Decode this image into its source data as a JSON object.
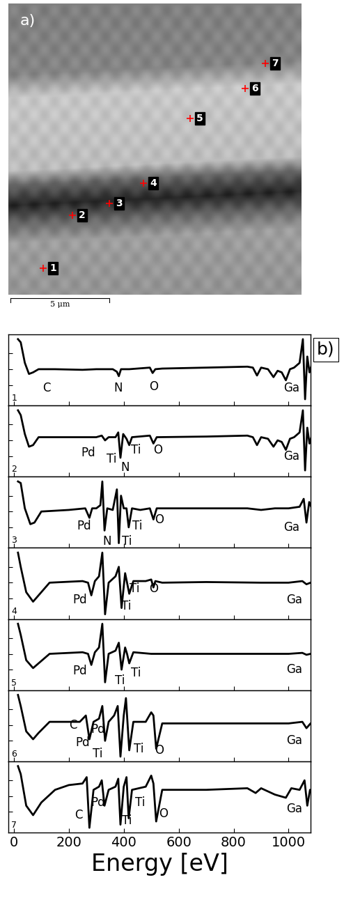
{
  "panel_a": {
    "label": "a)",
    "points": [
      "1",
      "2",
      "3",
      "4",
      "5",
      "6",
      "7"
    ],
    "scale_bar": "5 μm"
  },
  "panel_b_label": "b)",
  "chart_data": [
    {
      "type": "line",
      "label": "1",
      "color": "#000000",
      "tick_labels": false,
      "xlim": [
        -20,
        1080
      ],
      "ylim": [
        -1.15,
        1.1
      ],
      "xticks": [
        0,
        200,
        400,
        600,
        800,
        1000
      ],
      "yticks": [
        -0.5,
        0,
        0.5
      ],
      "x": [
        15,
        25,
        40,
        55,
        70,
        90,
        150,
        250,
        300,
        360,
        375,
        382,
        390,
        420,
        495,
        505,
        515,
        540,
        700,
        850,
        870,
        885,
        900,
        925,
        945,
        960,
        975,
        990,
        1005,
        1020,
        1040,
        1052,
        1060,
        1068,
        1076,
        1090
      ],
      "values": [
        0.95,
        0.85,
        0.2,
        -0.15,
        -0.1,
        0.0,
        0.0,
        -0.02,
        0.0,
        0.0,
        -0.08,
        -0.22,
        0.0,
        0.0,
        0.05,
        -0.12,
        0.0,
        0.02,
        0.05,
        0.08,
        0.05,
        -0.2,
        0.05,
        0.0,
        -0.25,
        -0.05,
        -0.1,
        -0.35,
        0.0,
        0.05,
        0.2,
        0.95,
        -0.95,
        0.4,
        -0.1,
        0.3
      ],
      "annotations": [
        {
          "text": "C",
          "x": 120,
          "y": -0.6
        },
        {
          "text": "N",
          "x": 380,
          "y": -0.6
        },
        {
          "text": "O",
          "x": 510,
          "y": -0.55
        },
        {
          "text": "Ga",
          "x": 1010,
          "y": -0.6
        }
      ]
    },
    {
      "type": "line",
      "label": "2",
      "color": "#000000",
      "tick_labels": false,
      "xlim": [
        -20,
        1080
      ],
      "ylim": [
        -1.15,
        1.1
      ],
      "xticks": [
        0,
        200,
        400,
        600,
        800,
        1000
      ],
      "yticks": [
        -0.5,
        0,
        0.5
      ],
      "x": [
        15,
        25,
        40,
        55,
        70,
        90,
        200,
        300,
        320,
        332,
        345,
        370,
        380,
        388,
        398,
        410,
        420,
        430,
        495,
        508,
        520,
        700,
        850,
        870,
        885,
        900,
        925,
        945,
        960,
        975,
        990,
        1005,
        1020,
        1040,
        1052,
        1060,
        1068,
        1076,
        1090
      ],
      "values": [
        0.95,
        0.8,
        0.2,
        -0.2,
        -0.15,
        0.1,
        0.1,
        0.1,
        0.15,
        0.0,
        0.1,
        0.1,
        0.25,
        -0.55,
        0.2,
        0.05,
        -0.15,
        0.1,
        0.15,
        -0.1,
        0.1,
        0.12,
        0.15,
        0.1,
        -0.15,
        0.1,
        0.05,
        -0.2,
        0.0,
        -0.05,
        -0.3,
        0.05,
        0.1,
        0.25,
        0.95,
        -0.95,
        0.4,
        -0.1,
        0.3
      ],
      "annotations": [
        {
          "text": "Pd",
          "x": 270,
          "y": -0.4
        },
        {
          "text": "Ti",
          "x": 355,
          "y": -0.6
        },
        {
          "text": "Ti",
          "x": 445,
          "y": -0.3
        },
        {
          "text": "N",
          "x": 405,
          "y": -0.85
        },
        {
          "text": "O",
          "x": 525,
          "y": -0.3
        },
        {
          "text": "Ga",
          "x": 1010,
          "y": -0.5
        }
      ]
    },
    {
      "type": "line",
      "label": "3",
      "color": "#000000",
      "tick_labels": false,
      "xlim": [
        -20,
        1080
      ],
      "ylim": [
        -1.15,
        1.1
      ],
      "xticks": [
        0,
        200,
        400,
        600,
        800,
        1000
      ],
      "yticks": [
        -0.5,
        0,
        0.5
      ],
      "x": [
        15,
        25,
        40,
        60,
        75,
        100,
        200,
        260,
        275,
        285,
        300,
        315,
        322,
        330,
        340,
        360,
        375,
        382,
        390,
        400,
        410,
        418,
        430,
        460,
        495,
        508,
        520,
        700,
        850,
        900,
        950,
        1000,
        1040,
        1055,
        1065,
        1075,
        1090
      ],
      "values": [
        0.95,
        0.9,
        0.1,
        -0.4,
        -0.35,
        0.0,
        0.05,
        0.1,
        -0.2,
        0.1,
        0.1,
        0.2,
        0.95,
        -0.6,
        0.1,
        0.05,
        0.7,
        -1.0,
        0.5,
        0.1,
        0.1,
        -0.5,
        0.1,
        0.05,
        0.1,
        -0.25,
        0.1,
        0.1,
        0.1,
        0.05,
        0.1,
        0.1,
        0.15,
        0.4,
        -0.35,
        0.3,
        0.0
      ],
      "annotations": [
        {
          "text": "Pd",
          "x": 255,
          "y": -0.45
        },
        {
          "text": "N",
          "x": 340,
          "y": -0.95
        },
        {
          "text": "Ti",
          "x": 450,
          "y": -0.45
        },
        {
          "text": "Ti",
          "x": 412,
          "y": -0.95
        },
        {
          "text": "O",
          "x": 530,
          "y": -0.25
        },
        {
          "text": "Ga",
          "x": 1010,
          "y": -0.5
        }
      ]
    },
    {
      "type": "line",
      "label": "4",
      "color": "#000000",
      "tick_labels": false,
      "xlim": [
        -20,
        1080
      ],
      "ylim": [
        -1.15,
        1.1
      ],
      "xticks": [
        0,
        200,
        400,
        600,
        800,
        1000
      ],
      "yticks": [
        -0.5,
        0,
        0.5
      ],
      "x": [
        15,
        25,
        45,
        70,
        90,
        130,
        250,
        270,
        282,
        295,
        310,
        322,
        332,
        345,
        370,
        382,
        392,
        405,
        412,
        420,
        435,
        480,
        500,
        508,
        515,
        540,
        700,
        900,
        1000,
        1050,
        1065,
        1080,
        1090
      ],
      "values": [
        0.95,
        0.5,
        -0.3,
        -0.6,
        -0.4,
        0.0,
        0.05,
        0.0,
        -0.4,
        0.05,
        0.2,
        0.95,
        -1.0,
        0.0,
        0.2,
        0.5,
        -0.8,
        0.3,
        0.0,
        -0.35,
        0.05,
        0.05,
        0.1,
        -0.15,
        0.05,
        0.0,
        0.02,
        0.0,
        0.0,
        0.05,
        -0.05,
        0.0,
        0.0
      ],
      "annotations": [
        {
          "text": "Pd",
          "x": 240,
          "y": -0.55
        },
        {
          "text": "Ti",
          "x": 440,
          "y": -0.2
        },
        {
          "text": "O",
          "x": 510,
          "y": -0.2
        },
        {
          "text": "Ti",
          "x": 410,
          "y": -0.75
        },
        {
          "text": "Ga",
          "x": 1020,
          "y": -0.55
        }
      ]
    },
    {
      "type": "line",
      "label": "5",
      "color": "#000000",
      "tick_labels": false,
      "xlim": [
        -20,
        1080
      ],
      "ylim": [
        -1.15,
        1.1
      ],
      "xticks": [
        0,
        200,
        400,
        600,
        800,
        1000
      ],
      "yticks": [
        -0.5,
        0,
        0.5
      ],
      "x": [
        15,
        25,
        45,
        70,
        90,
        130,
        250,
        270,
        282,
        295,
        310,
        322,
        332,
        345,
        370,
        382,
        392,
        405,
        412,
        420,
        435,
        500,
        700,
        900,
        1000,
        1050,
        1065,
        1080,
        1090
      ],
      "values": [
        0.95,
        0.6,
        -0.2,
        -0.45,
        -0.3,
        0.0,
        0.05,
        0.0,
        -0.35,
        0.05,
        0.2,
        0.95,
        -0.9,
        0.0,
        0.1,
        0.35,
        -0.5,
        0.2,
        0.0,
        -0.3,
        0.05,
        0.0,
        0.0,
        0.0,
        0.0,
        0.03,
        -0.03,
        0.0,
        0.0
      ],
      "annotations": [
        {
          "text": "Pd",
          "x": 240,
          "y": -0.55
        },
        {
          "text": "Ti",
          "x": 385,
          "y": -0.85
        },
        {
          "text": "Ti",
          "x": 445,
          "y": -0.6
        },
        {
          "text": "Ga",
          "x": 1020,
          "y": -0.5
        }
      ]
    },
    {
      "type": "line",
      "label": "6",
      "color": "#000000",
      "tick_labels": false,
      "xlim": [
        -20,
        1080
      ],
      "ylim": [
        -1.15,
        1.1
      ],
      "xticks": [
        0,
        200,
        400,
        600,
        800,
        1000
      ],
      "yticks": [
        -0.5,
        0,
        0.5
      ],
      "x": [
        15,
        25,
        45,
        70,
        90,
        130,
        240,
        262,
        275,
        290,
        310,
        322,
        332,
        345,
        365,
        378,
        388,
        400,
        408,
        420,
        435,
        480,
        500,
        508,
        518,
        540,
        700,
        900,
        1000,
        1050,
        1065,
        1080,
        1090
      ],
      "values": [
        0.95,
        0.6,
        -0.2,
        -0.45,
        -0.25,
        0.1,
        0.1,
        0.3,
        -0.45,
        0.1,
        0.2,
        0.6,
        -0.5,
        0.1,
        0.3,
        0.6,
        -1.0,
        0.3,
        0.85,
        -0.8,
        0.1,
        0.1,
        0.4,
        0.3,
        -0.75,
        0.05,
        0.05,
        0.05,
        0.05,
        0.1,
        -0.1,
        0.05,
        0.0
      ],
      "annotations": [
        {
          "text": "C",
          "x": 215,
          "y": 0.0
        },
        {
          "text": "Pd",
          "x": 305,
          "y": -0.15
        },
        {
          "text": "Pd",
          "x": 250,
          "y": -0.55
        },
        {
          "text": "Ti",
          "x": 305,
          "y": -0.92
        },
        {
          "text": "Ti",
          "x": 455,
          "y": -0.75
        },
        {
          "text": "O",
          "x": 530,
          "y": -0.8
        },
        {
          "text": "Ga",
          "x": 1020,
          "y": -0.5
        }
      ]
    },
    {
      "type": "line",
      "label": "7",
      "color": "#000000",
      "tick_labels": "x",
      "x_label": "Energy [eV]",
      "xlim": [
        -20,
        1080
      ],
      "ylim": [
        -1.15,
        1.1
      ],
      "xticks": [
        0,
        200,
        400,
        600,
        800,
        1000
      ],
      "yticks": [
        -0.5,
        0,
        0.5
      ],
      "x": [
        15,
        25,
        45,
        70,
        100,
        150,
        200,
        250,
        265,
        275,
        290,
        310,
        320,
        330,
        345,
        370,
        380,
        388,
        400,
        410,
        418,
        430,
        480,
        500,
        508,
        518,
        540,
        700,
        850,
        880,
        900,
        950,
        990,
        1010,
        1040,
        1058,
        1068,
        1078,
        1090
      ],
      "values": [
        0.95,
        0.7,
        -0.3,
        -0.6,
        -0.2,
        0.2,
        0.35,
        0.4,
        0.6,
        -1.0,
        0.2,
        0.3,
        0.5,
        -0.3,
        0.2,
        0.3,
        0.55,
        -0.9,
        0.3,
        0.6,
        -0.7,
        0.2,
        0.3,
        0.65,
        0.4,
        -0.8,
        0.2,
        0.2,
        0.25,
        0.1,
        0.25,
        0.05,
        -0.05,
        0.25,
        0.2,
        0.5,
        -0.3,
        0.2,
        0.0
      ],
      "annotations": [
        {
          "text": "C",
          "x": 235,
          "y": -0.6
        },
        {
          "text": "Pd",
          "x": 305,
          "y": -0.2
        },
        {
          "text": "Ti",
          "x": 460,
          "y": -0.2
        },
        {
          "text": "Ti",
          "x": 412,
          "y": -0.78
        },
        {
          "text": "O",
          "x": 545,
          "y": -0.55
        },
        {
          "text": "Ga",
          "x": 1020,
          "y": -0.4
        }
      ]
    }
  ]
}
